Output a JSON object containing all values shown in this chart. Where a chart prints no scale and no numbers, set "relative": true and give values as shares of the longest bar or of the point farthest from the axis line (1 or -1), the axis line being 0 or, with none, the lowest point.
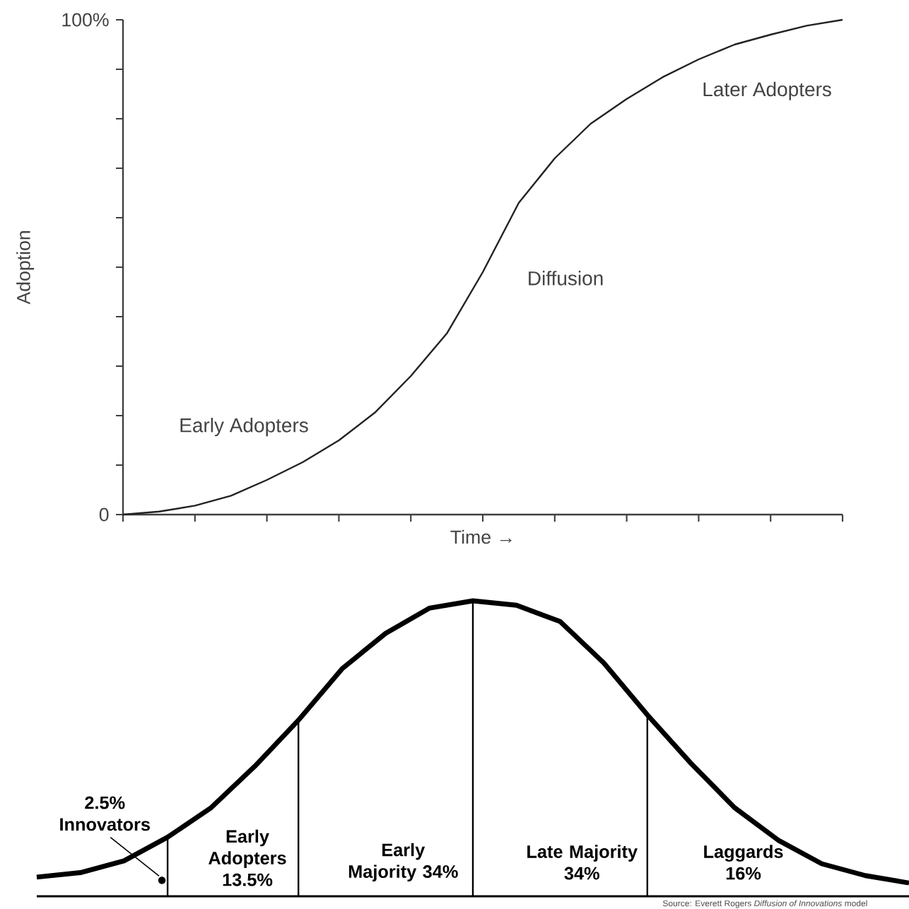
{
  "chart_data": [
    {
      "type": "line",
      "xlabel": "Time →",
      "ylabel": "Adoption",
      "color": "#222222",
      "categories": [
        null,
        null,
        null,
        null,
        null,
        null,
        null,
        null,
        null,
        null,
        null,
        null,
        null,
        null,
        null,
        null,
        null,
        null,
        null,
        null,
        null
      ],
      "values": [
        0,
        0.6,
        1.8,
        3.8,
        7,
        10.6,
        15,
        20.6,
        28,
        36.6,
        49,
        63,
        72,
        79,
        84,
        88.4,
        92,
        95,
        97,
        98.8,
        100
      ],
      "ylim": [
        0,
        100
      ],
      "yticks": [
        0,
        {
          "value": 10,
          "label": null
        },
        {
          "value": 20,
          "label": null
        },
        {
          "value": 30,
          "label": null
        },
        {
          "value": 40,
          "label": null
        },
        {
          "value": 50,
          "label": null
        },
        {
          "value": 60,
          "label": null
        },
        {
          "value": 70,
          "label": null
        },
        {
          "value": 80,
          "label": null
        },
        {
          "value": 90,
          "label": null
        },
        {
          "value": 100,
          "label": "100%"
        }
      ],
      "annotations": [
        "Early Adopters",
        "Diffusion",
        "Later Adopters"
      ]
    },
    {
      "type": "line",
      "relative": true,
      "color": "#000000",
      "categories": [
        null,
        null,
        null,
        null,
        null,
        null,
        null,
        null,
        null,
        null,
        null,
        null,
        null,
        null,
        null,
        null,
        null,
        null,
        null,
        null,
        null
      ],
      "values": [
        0.065,
        0.08,
        0.12,
        0.2,
        0.3,
        0.44,
        0.596,
        0.77,
        0.89,
        0.975,
        1.0,
        0.985,
        0.93,
        0.79,
        0.614,
        0.45,
        0.3,
        0.19,
        0.11,
        0.07,
        0.045
      ],
      "annotations": [
        "2.5% Innovators",
        "Early Adopters 13.5%",
        "Early Majority 34%",
        "Late Majority 34%",
        "Laggards 16%",
        "Source: Everett Rogers *Diffusion of Innovations* model"
      ]
    }
  ]
}
